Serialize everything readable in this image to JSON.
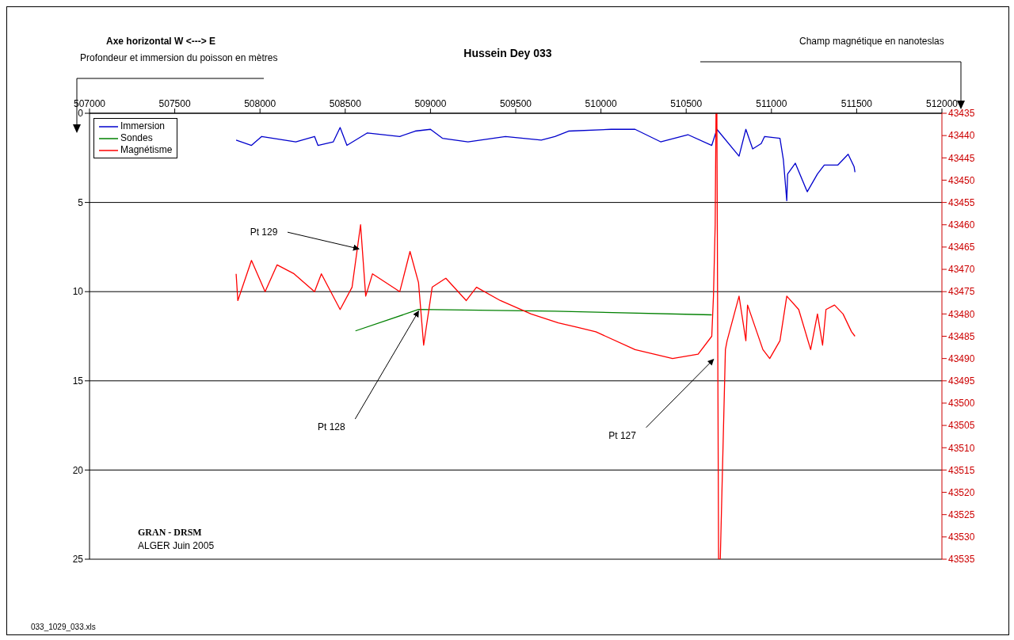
{
  "chart_data": {
    "type": "line",
    "title": "Hussein Dey 033",
    "ylabel": "Profondeur et immersion du poisson en mètres",
    "xlim": [
      507000,
      512000
    ],
    "xticks": [
      507000,
      507500,
      508000,
      508500,
      509000,
      509500,
      510000,
      510500,
      511000,
      511500,
      512000
    ],
    "ylim": [
      25,
      0
    ],
    "yticks": [
      0,
      5,
      10,
      15,
      20,
      25
    ],
    "y2lim": [
      43535,
      43435
    ],
    "y2ticks": [
      43435,
      43440,
      43445,
      43450,
      43455,
      43460,
      43465,
      43470,
      43475,
      43480,
      43485,
      43490,
      43495,
      43500,
      43505,
      43510,
      43515,
      43520,
      43525,
      43530,
      43535
    ],
    "grid": "y",
    "legend": "top left",
    "marker": "none",
    "line_style": "solid",
    "series": [
      {
        "name": "Immersion",
        "color": "#0000cc",
        "x": [
          507860,
          507950,
          508010,
          508210,
          508320,
          508340,
          508430,
          508470,
          508510,
          508630,
          508820,
          508910,
          509000,
          509070,
          509220,
          509440,
          509650,
          509730,
          509810,
          510060,
          510200,
          510350,
          510510,
          510650,
          510680,
          510810,
          510850,
          510890,
          510940,
          510960,
          511050,
          511070,
          511090,
          511095,
          511140,
          511210,
          511270,
          511310,
          511390,
          511450,
          511485,
          511490
        ],
        "values": [
          1.5,
          1.8,
          1.3,
          1.6,
          1.3,
          1.8,
          1.6,
          0.8,
          1.8,
          1.1,
          1.3,
          1.0,
          0.9,
          1.4,
          1.6,
          1.3,
          1.5,
          1.3,
          1.0,
          0.9,
          0.9,
          1.6,
          1.2,
          1.8,
          0.9,
          2.4,
          0.9,
          2.0,
          1.7,
          1.3,
          1.4,
          2.6,
          4.9,
          3.4,
          2.8,
          4.4,
          3.4,
          2.9,
          2.9,
          2.3,
          3.0,
          3.3
        ]
      },
      {
        "name": "Sondes",
        "color": "#008000",
        "x": [
          508560,
          508930,
          509730,
          510650
        ],
        "values": [
          12.2,
          11.0,
          11.1,
          11.3
        ]
      },
      {
        "name": "Magnétisme",
        "color": "#ff0000",
        "axis": "y2",
        "x": [
          507860,
          507870,
          507950,
          508030,
          508100,
          508200,
          508320,
          508360,
          508470,
          508540,
          508590,
          508620,
          508660,
          508820,
          508880,
          508930,
          508960,
          509010,
          509090,
          509210,
          509270,
          509410,
          509590,
          509750,
          509860,
          509970,
          510200,
          510420,
          510570,
          510650,
          510660,
          510670,
          510675,
          510680,
          510690,
          510700,
          510730,
          510740,
          510810,
          510850,
          510860,
          510950,
          510990,
          511050,
          511090,
          511160,
          511230,
          511270,
          511300,
          511320,
          511370,
          511420,
          511470,
          511490
        ],
        "values": [
          43471,
          43477,
          43468,
          43475,
          43469,
          43471,
          43475,
          43471,
          43479,
          43474,
          43460,
          43476,
          43471,
          43475,
          43466,
          43473,
          43487,
          43474,
          43472,
          43477,
          43474,
          43477,
          43480,
          43482,
          43483,
          43484,
          43488,
          43490,
          43489,
          43485,
          43476,
          43460,
          43435,
          43435,
          43535,
          43535,
          43488,
          43486,
          43476,
          43486,
          43478,
          43488,
          43490,
          43486,
          43476,
          43479,
          43488,
          43480,
          43487,
          43479,
          43478,
          43480,
          43484,
          43485
        ]
      }
    ],
    "annotations": [
      {
        "text": "Pt 129",
        "x": 508580,
        "y": 7.6
      },
      {
        "text": "Pt 128",
        "x": 508930,
        "y": 11.1
      },
      {
        "text": "Pt 127",
        "x": 510660,
        "y": 13.8
      },
      "Axe horizontal W <---> E",
      "Champ magnétique en nanoteslas",
      "GRAN - DRSM",
      "ALGER Juin 2005",
      "033_1029_033.xls"
    ]
  }
}
